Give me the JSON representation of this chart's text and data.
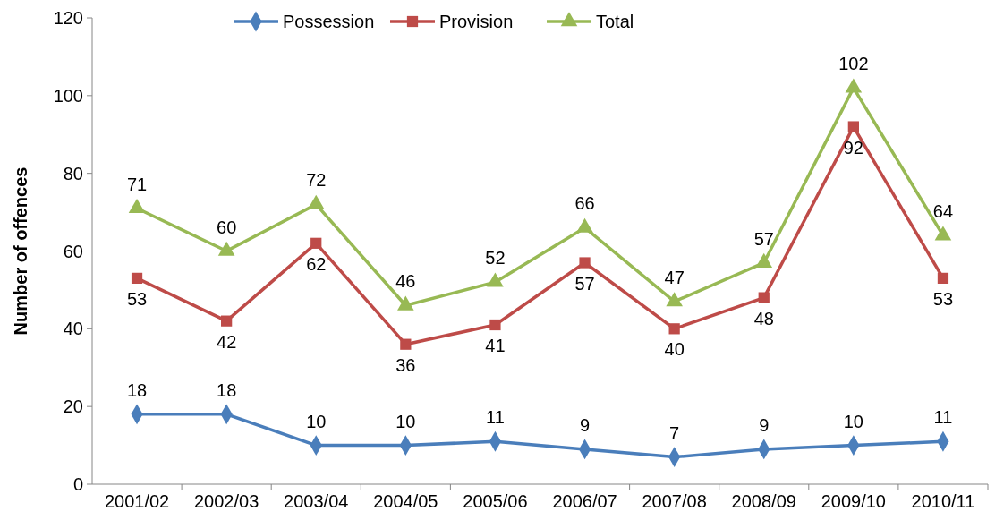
{
  "chart_data": {
    "type": "line",
    "ylabel": "Number of offences",
    "categories": [
      "2001/02",
      "2002/03",
      "2003/04",
      "2004/05",
      "2005/06",
      "2006/07",
      "2007/08",
      "2008/09",
      "2009/10",
      "2010/11"
    ],
    "series": [
      {
        "name": "Possession",
        "color": "#4a7ebb",
        "marker": "diamond",
        "values": [
          18,
          18,
          10,
          10,
          11,
          9,
          7,
          9,
          10,
          11
        ]
      },
      {
        "name": "Provision",
        "color": "#be4b48",
        "marker": "square",
        "values": [
          53,
          42,
          62,
          36,
          41,
          57,
          40,
          48,
          92,
          53
        ]
      },
      {
        "name": "Total",
        "color": "#98b954",
        "marker": "triangle",
        "values": [
          71,
          60,
          72,
          46,
          52,
          66,
          47,
          57,
          102,
          64
        ]
      }
    ],
    "ylim": [
      0,
      120
    ],
    "yticks": [
      0,
      20,
      40,
      60,
      80,
      100,
      120
    ],
    "grid": false,
    "legend": "top",
    "data_labels": true,
    "line_style": "solid"
  }
}
